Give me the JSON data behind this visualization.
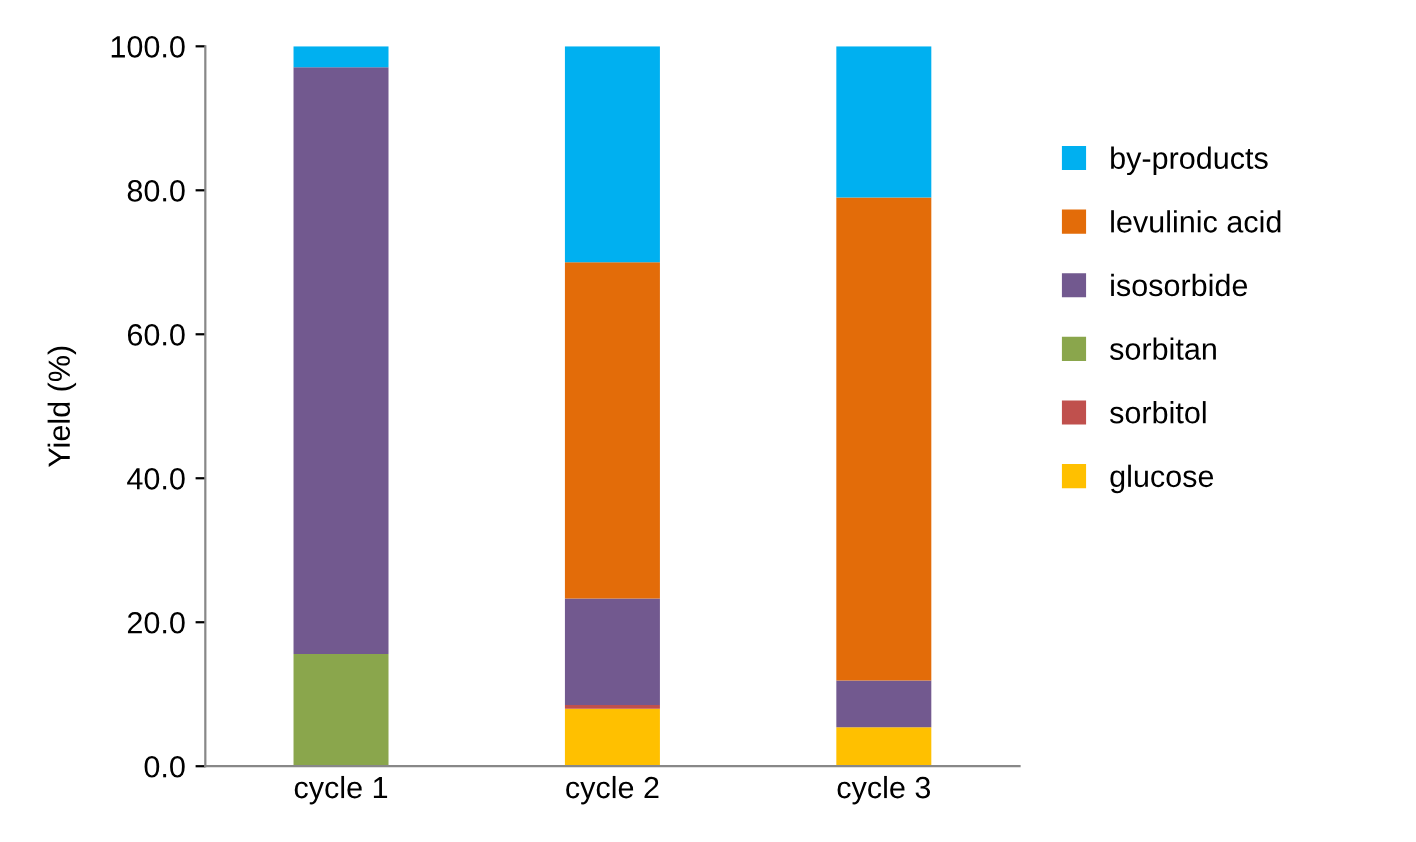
{
  "chart_data": {
    "type": "bar",
    "stacked": true,
    "ylabel": "Yield (%)",
    "categories": [
      "cycle 1",
      "cycle 2",
      "cycle 3"
    ],
    "series": [
      {
        "name": "glucose",
        "color": "#ffc000",
        "values": [
          0,
          8.0,
          5.4
        ]
      },
      {
        "name": "sorbitol",
        "color": "#c0504d",
        "values": [
          0,
          0.5,
          0
        ]
      },
      {
        "name": "sorbitan",
        "color": "#8aa64c",
        "values": [
          15.6,
          0,
          0
        ]
      },
      {
        "name": "isosorbide",
        "color": "#72598f",
        "values": [
          81.5,
          14.8,
          6.5
        ]
      },
      {
        "name": "levulinic acid",
        "color": "#e36c09",
        "values": [
          0,
          46.7,
          67.1
        ]
      },
      {
        "name": "by-products",
        "color": "#00b0f0",
        "values": [
          2.9,
          30.0,
          21.0
        ]
      }
    ],
    "ylim": [
      0,
      100
    ],
    "yticks": [
      {
        "value": 0,
        "label": "0.0"
      },
      {
        "value": 20,
        "label": "20.0"
      },
      {
        "value": 40,
        "label": "40.0"
      },
      {
        "value": 60,
        "label": "60.0"
      },
      {
        "value": 80,
        "label": "80.0"
      },
      {
        "value": 100,
        "label": "100.0"
      }
    ],
    "grid": false,
    "legend": "right"
  }
}
